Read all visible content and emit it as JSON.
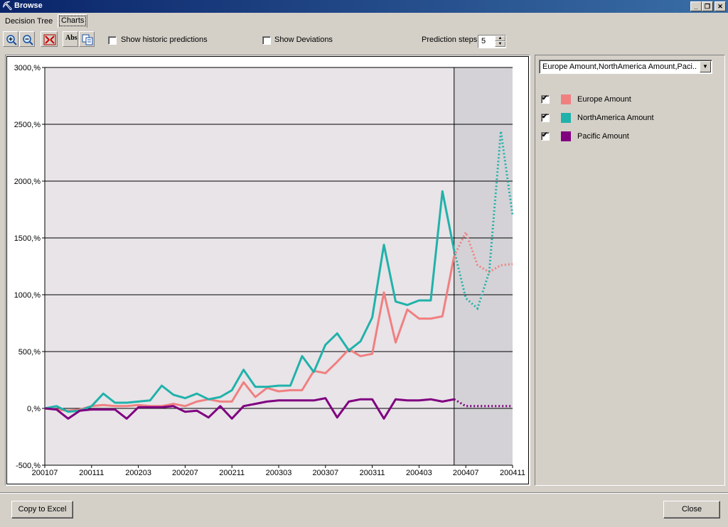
{
  "window": {
    "title": "Browse",
    "icon": "mining-pick-icon"
  },
  "tabs": [
    {
      "label": "Decision Tree"
    },
    {
      "label": "Charts"
    }
  ],
  "toolbar": {
    "buttons": [
      "zoom-in-icon",
      "zoom-out-icon",
      "fit-to-window-icon",
      "absolute-values-icon",
      "copy-icon"
    ],
    "show_historic_label": "Show historic predictions",
    "show_historic_checked": false,
    "show_deviations_label": "Show Deviations",
    "show_deviations_checked": false,
    "prediction_steps_label": "Prediction steps",
    "prediction_steps_value": "5"
  },
  "series_selector": {
    "value": "Europe Amount,NorthAmerica Amount,Paci..."
  },
  "legend": [
    {
      "label": "Europe Amount",
      "checked": true,
      "color": "#f08080"
    },
    {
      "label": "NorthAmerica Amount",
      "checked": true,
      "color": "#20b2aa"
    },
    {
      "label": "Pacific Amount",
      "checked": true,
      "color": "#800080"
    }
  ],
  "chart_data": {
    "type": "line",
    "y_ticks": [
      "3000,%",
      "2500,%",
      "2000,%",
      "1500,%",
      "1000,%",
      "500,%",
      "0,%",
      "-500,%"
    ],
    "ylim": [
      -500,
      3000
    ],
    "x_tick_labels": [
      "200107",
      "200111",
      "200203",
      "200207",
      "200211",
      "200303",
      "200307",
      "200311",
      "200403",
      "200407",
      "200411"
    ],
    "x": [
      "200107",
      "200108",
      "200109",
      "200110",
      "200111",
      "200112",
      "200201",
      "200202",
      "200203",
      "200204",
      "200205",
      "200206",
      "200207",
      "200208",
      "200209",
      "200210",
      "200211",
      "200212",
      "200301",
      "200302",
      "200303",
      "200304",
      "200305",
      "200306",
      "200307",
      "200308",
      "200309",
      "200310",
      "200311",
      "200312",
      "200401",
      "200402",
      "200403",
      "200404",
      "200405",
      "200406",
      "200407",
      "200408",
      "200409",
      "200410",
      "200411"
    ],
    "prediction_start": "200406",
    "grid": true,
    "series": [
      {
        "name": "Europe Amount",
        "color": "#f08080",
        "values": [
          0,
          -10,
          -20,
          -10,
          20,
          30,
          20,
          20,
          30,
          20,
          20,
          40,
          20,
          60,
          80,
          60,
          60,
          230,
          100,
          180,
          150,
          160,
          160,
          330,
          310,
          410,
          520,
          460,
          480,
          1020,
          580,
          870,
          790,
          790,
          810,
          1340,
          1550,
          1260,
          1200,
          1260,
          1270
        ]
      },
      {
        "name": "NorthAmerica Amount",
        "color": "#20b2aa",
        "values": [
          0,
          20,
          -30,
          -20,
          20,
          130,
          50,
          50,
          60,
          70,
          200,
          120,
          90,
          130,
          80,
          100,
          160,
          340,
          190,
          190,
          200,
          200,
          460,
          320,
          560,
          660,
          510,
          590,
          800,
          1440,
          940,
          910,
          950,
          950,
          1910,
          1390,
          970,
          880,
          1200,
          2440,
          1700
        ]
      },
      {
        "name": "Pacific Amount",
        "color": "#800080",
        "values": [
          0,
          -10,
          -90,
          -20,
          -10,
          -10,
          -10,
          -90,
          10,
          10,
          10,
          20,
          -30,
          -20,
          -80,
          20,
          -90,
          20,
          40,
          60,
          70,
          70,
          70,
          70,
          90,
          -80,
          60,
          80,
          80,
          -90,
          80,
          70,
          70,
          80,
          60,
          80,
          20,
          20,
          20,
          20,
          20
        ]
      }
    ]
  },
  "footer": {
    "copy_label": "Copy to Excel",
    "close_label": "Close"
  }
}
